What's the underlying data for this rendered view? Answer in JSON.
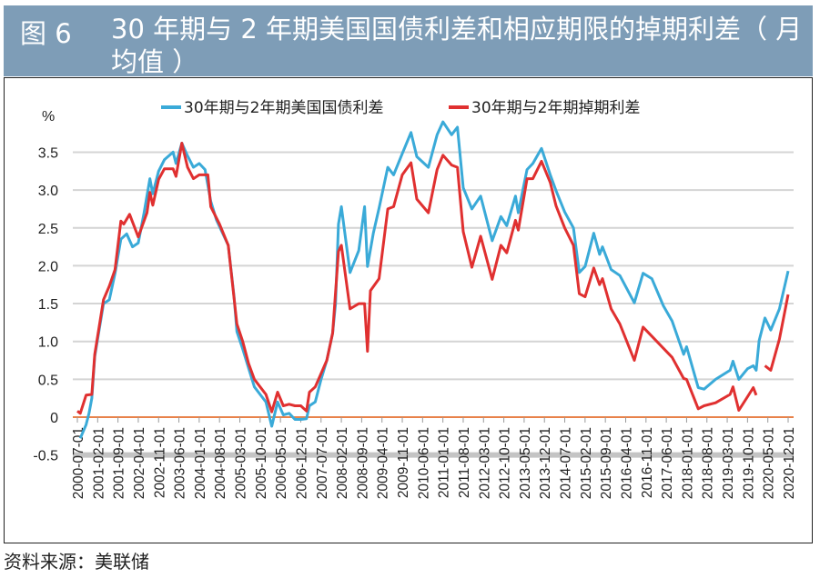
{
  "figure": {
    "number": "图 6",
    "title": "30 年期与 2 年期美国国债利差和相应期限的掉期利差（ 月均值 ）"
  },
  "source": "资料来源：美联储",
  "chart_data": {
    "type": "line",
    "title": "",
    "ylabel": "%",
    "xlabel": "",
    "ylim": [
      -0.5,
      3.9
    ],
    "yticks": [
      -0.5,
      0,
      0.5,
      1.0,
      1.5,
      2.0,
      2.5,
      3.0,
      3.5
    ],
    "ytick_labels": [
      "-0.5",
      "0",
      "0.5",
      "1.0",
      "1.5",
      "2.0",
      "2.5",
      "3.0",
      "3.5"
    ],
    "x_tick_labels": [
      "2000-07-01",
      "2001-02-01",
      "2001-09-01",
      "2002-04-01",
      "2002-11-01",
      "2003-06-01",
      "2004-01-01",
      "2004-08-01",
      "2005-03-01",
      "2005-10-01",
      "2006-05-01",
      "2006-12-01",
      "2007-07-01",
      "2008-02-01",
      "2008-09-01",
      "2009-04-01",
      "2009-11-01",
      "2010-06-01",
      "2011-01-01",
      "2011-08-01",
      "2012-03-01",
      "2012-10-01",
      "2013-05-01",
      "2013-12-01",
      "2014-07-01",
      "2015-02-01",
      "2015-09-01",
      "2016-04-01",
      "2016-11-01",
      "2017-06-01",
      "2018-01-01",
      "2018-08-01",
      "2019-03-01",
      "2019-10-01",
      "2020-05-01",
      "2020-12-01"
    ],
    "grid": true,
    "legend_position": "top",
    "series": [
      {
        "name": "30年期与2年期美国国债利差",
        "color": "#3aaad8",
        "points": [
          [
            "2000-08",
            -0.28
          ],
          [
            "2000-10",
            -0.1
          ],
          [
            "2000-11",
            0.05
          ],
          [
            "2000-12",
            0.25
          ],
          [
            "2001-01",
            0.8
          ],
          [
            "2001-04",
            1.5
          ],
          [
            "2001-06",
            1.55
          ],
          [
            "2001-08",
            1.9
          ],
          [
            "2001-10",
            2.35
          ],
          [
            "2001-12",
            2.42
          ],
          [
            "2002-02",
            2.25
          ],
          [
            "2002-04",
            2.3
          ],
          [
            "2002-06",
            2.7
          ],
          [
            "2002-08",
            3.15
          ],
          [
            "2002-09",
            2.95
          ],
          [
            "2002-11",
            3.25
          ],
          [
            "2003-01",
            3.4
          ],
          [
            "2003-04",
            3.5
          ],
          [
            "2003-05",
            3.35
          ],
          [
            "2003-07",
            3.62
          ],
          [
            "2003-09",
            3.45
          ],
          [
            "2003-11",
            3.3
          ],
          [
            "2004-01",
            3.35
          ],
          [
            "2004-03",
            3.27
          ],
          [
            "2004-05",
            2.85
          ],
          [
            "2004-07",
            2.6
          ],
          [
            "2004-11",
            2.27
          ],
          [
            "2005-01",
            1.6
          ],
          [
            "2005-02",
            1.13
          ],
          [
            "2005-04",
            0.9
          ],
          [
            "2005-06",
            0.65
          ],
          [
            "2005-08",
            0.4
          ],
          [
            "2005-10",
            0.3
          ],
          [
            "2005-12",
            0.2
          ],
          [
            "2006-02",
            -0.12
          ],
          [
            "2006-04",
            0.2
          ],
          [
            "2006-06",
            0.03
          ],
          [
            "2006-08",
            0.05
          ],
          [
            "2006-10",
            -0.03
          ],
          [
            "2006-12",
            -0.03
          ],
          [
            "2007-02",
            -0.02
          ],
          [
            "2007-03",
            0.15
          ],
          [
            "2007-05",
            0.2
          ],
          [
            "2007-07",
            0.5
          ],
          [
            "2007-09",
            0.75
          ],
          [
            "2007-11",
            1.11
          ],
          [
            "2007-12",
            1.5
          ],
          [
            "2008-01",
            2.55
          ],
          [
            "2008-02",
            2.78
          ],
          [
            "2008-05",
            1.91
          ],
          [
            "2008-08",
            2.2
          ],
          [
            "2008-10",
            2.78
          ],
          [
            "2008-11",
            1.99
          ],
          [
            "2009-01",
            2.43
          ],
          [
            "2009-03",
            2.76
          ],
          [
            "2009-06",
            3.3
          ],
          [
            "2009-08",
            3.2
          ],
          [
            "2009-11",
            3.48
          ],
          [
            "2010-02",
            3.76
          ],
          [
            "2010-04",
            3.44
          ],
          [
            "2010-08",
            3.3
          ],
          [
            "2010-11",
            3.73
          ],
          [
            "2011-01",
            3.9
          ],
          [
            "2011-04",
            3.73
          ],
          [
            "2011-06",
            3.83
          ],
          [
            "2011-08",
            3.03
          ],
          [
            "2011-11",
            2.75
          ],
          [
            "2012-02",
            2.92
          ],
          [
            "2012-06",
            2.33
          ],
          [
            "2012-09",
            2.65
          ],
          [
            "2012-11",
            2.53
          ],
          [
            "2013-02",
            2.92
          ],
          [
            "2013-03",
            2.7
          ],
          [
            "2013-06",
            3.27
          ],
          [
            "2013-08",
            3.35
          ],
          [
            "2013-11",
            3.55
          ],
          [
            "2014-02",
            3.2
          ],
          [
            "2014-04",
            2.99
          ],
          [
            "2014-07",
            2.71
          ],
          [
            "2014-10",
            2.5
          ],
          [
            "2014-12",
            1.91
          ],
          [
            "2015-02",
            1.99
          ],
          [
            "2015-05",
            2.43
          ],
          [
            "2015-07",
            2.15
          ],
          [
            "2015-08",
            2.25
          ],
          [
            "2015-11",
            1.95
          ],
          [
            "2016-02",
            1.87
          ],
          [
            "2016-07",
            1.51
          ],
          [
            "2016-10",
            1.9
          ],
          [
            "2017-01",
            1.83
          ],
          [
            "2017-05",
            1.47
          ],
          [
            "2017-08",
            1.27
          ],
          [
            "2017-12",
            0.83
          ],
          [
            "2018-01",
            0.93
          ],
          [
            "2018-05",
            0.39
          ],
          [
            "2018-07",
            0.37
          ],
          [
            "2018-11",
            0.5
          ],
          [
            "2019-04",
            0.62
          ],
          [
            "2019-05",
            0.74
          ],
          [
            "2019-07",
            0.5
          ],
          [
            "2019-10",
            0.64
          ],
          [
            "2019-12",
            0.68
          ],
          [
            "2020-01",
            0.62
          ],
          [
            "2020-02",
            1.01
          ],
          [
            "2020-04",
            1.31
          ],
          [
            "2020-06",
            1.15
          ],
          [
            "2020-09",
            1.43
          ],
          [
            "2020-12",
            1.93
          ]
        ]
      },
      {
        "name": "30年期与2年期掉期利差",
        "color": "#e03030",
        "points": [
          [
            "2000-07",
            0.08
          ],
          [
            "2000-08",
            0.05
          ],
          [
            "2000-10",
            0.29
          ],
          [
            "2000-12",
            0.3
          ],
          [
            "2001-01",
            0.83
          ],
          [
            "2001-04",
            1.55
          ],
          [
            "2001-06",
            1.73
          ],
          [
            "2001-08",
            1.95
          ],
          [
            "2001-10",
            2.59
          ],
          [
            "2001-11",
            2.55
          ],
          [
            "2002-01",
            2.68
          ],
          [
            "2002-04",
            2.38
          ],
          [
            "2002-07",
            2.7
          ],
          [
            "2002-08",
            2.97
          ],
          [
            "2002-09",
            2.8
          ],
          [
            "2002-11",
            3.14
          ],
          [
            "2003-01",
            3.28
          ],
          [
            "2003-04",
            3.28
          ],
          [
            "2003-05",
            3.18
          ],
          [
            "2003-07",
            3.62
          ],
          [
            "2003-09",
            3.3
          ],
          [
            "2003-11",
            3.15
          ],
          [
            "2004-01",
            3.2
          ],
          [
            "2004-04",
            3.2
          ],
          [
            "2004-05",
            2.78
          ],
          [
            "2004-08",
            2.55
          ],
          [
            "2004-11",
            2.27
          ],
          [
            "2005-02",
            1.23
          ],
          [
            "2005-04",
            1.0
          ],
          [
            "2005-06",
            0.71
          ],
          [
            "2005-08",
            0.5
          ],
          [
            "2005-10",
            0.4
          ],
          [
            "2005-12",
            0.3
          ],
          [
            "2006-02",
            0.07
          ],
          [
            "2006-04",
            0.33
          ],
          [
            "2006-06",
            0.15
          ],
          [
            "2006-08",
            0.17
          ],
          [
            "2006-10",
            0.15
          ],
          [
            "2006-12",
            0.15
          ],
          [
            "2007-02",
            0.08
          ],
          [
            "2007-03",
            0.33
          ],
          [
            "2007-05",
            0.4
          ],
          [
            "2007-09",
            0.75
          ],
          [
            "2007-11",
            1.11
          ],
          [
            "2008-01",
            2.19
          ],
          [
            "2008-02",
            2.27
          ],
          [
            "2008-05",
            1.43
          ],
          [
            "2008-08",
            1.5
          ],
          [
            "2008-10",
            1.5
          ],
          [
            "2008-11",
            0.87
          ],
          [
            "2008-12",
            1.67
          ],
          [
            "2009-03",
            1.83
          ],
          [
            "2009-06",
            2.75
          ],
          [
            "2009-08",
            2.78
          ],
          [
            "2009-11",
            3.2
          ],
          [
            "2010-02",
            3.36
          ],
          [
            "2010-04",
            2.88
          ],
          [
            "2010-08",
            2.7
          ],
          [
            "2010-11",
            3.27
          ],
          [
            "2011-01",
            3.46
          ],
          [
            "2011-04",
            3.33
          ],
          [
            "2011-06",
            3.3
          ],
          [
            "2011-08",
            2.45
          ],
          [
            "2011-11",
            1.98
          ],
          [
            "2012-02",
            2.39
          ],
          [
            "2012-06",
            1.82
          ],
          [
            "2012-09",
            2.27
          ],
          [
            "2012-11",
            2.17
          ],
          [
            "2013-02",
            2.6
          ],
          [
            "2013-03",
            2.47
          ],
          [
            "2013-06",
            3.15
          ],
          [
            "2013-08",
            3.15
          ],
          [
            "2013-11",
            3.38
          ],
          [
            "2014-02",
            3.1
          ],
          [
            "2014-04",
            2.79
          ],
          [
            "2014-07",
            2.5
          ],
          [
            "2014-10",
            2.27
          ],
          [
            "2014-12",
            1.63
          ],
          [
            "2015-02",
            1.59
          ],
          [
            "2015-05",
            1.97
          ],
          [
            "2015-07",
            1.75
          ],
          [
            "2015-08",
            1.83
          ],
          [
            "2015-11",
            1.43
          ],
          [
            "2016-02",
            1.23
          ],
          [
            "2016-07",
            0.75
          ],
          [
            "2016-10",
            1.19
          ],
          [
            "2017-01",
            1.07
          ],
          [
            "2017-05",
            0.91
          ],
          [
            "2017-08",
            0.79
          ],
          [
            "2017-12",
            0.51
          ],
          [
            "2018-01",
            0.5
          ],
          [
            "2018-05",
            0.11
          ],
          [
            "2018-07",
            0.15
          ],
          [
            "2018-11",
            0.19
          ],
          [
            "2019-04",
            0.3
          ],
          [
            "2019-05",
            0.4
          ],
          [
            "2019-07",
            0.09
          ],
          [
            "2019-10",
            0.27
          ],
          [
            "2019-12",
            0.39
          ],
          [
            "2020-01",
            0.29
          ],
          [
            "2020-02",
            null
          ],
          [
            "2020-04",
            0.68
          ],
          [
            "2020-06",
            0.62
          ],
          [
            "2020-09",
            1.03
          ],
          [
            "2020-12",
            1.62
          ]
        ]
      }
    ]
  }
}
